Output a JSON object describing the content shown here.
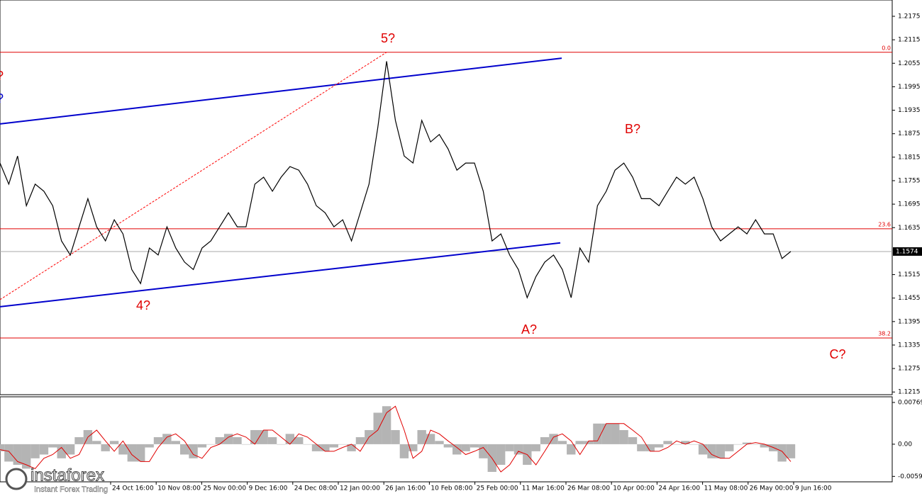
{
  "chart_data": [
    {
      "type": "line",
      "color": "#000000",
      "values": [
        1.18,
        1.1746,
        1.1818,
        1.1691,
        1.1746,
        1.1728,
        1.1691,
        1.1601,
        1.1565,
        1.1637,
        1.1709,
        1.1637,
        1.1601,
        1.1655,
        1.1619,
        1.1528,
        1.1492,
        1.1583,
        1.1565,
        1.1637,
        1.1583,
        1.1547,
        1.1528,
        1.1583,
        1.1601,
        1.1637,
        1.1673,
        1.1637,
        1.1637,
        1.1746,
        1.1764,
        1.1728,
        1.1764,
        1.1791,
        1.1782,
        1.1746,
        1.1691,
        1.1673,
        1.1637,
        1.1655,
        1.1601,
        1.1673,
        1.1746,
        1.1891,
        1.206,
        1.1909,
        1.1818,
        1.18,
        1.1909,
        1.1854,
        1.1873,
        1.1836,
        1.1782,
        1.18,
        1.18,
        1.1728,
        1.1601,
        1.1619,
        1.1565,
        1.1528,
        1.1456,
        1.151,
        1.1547,
        1.1565,
        1.1528,
        1.1456,
        1.1583,
        1.1547,
        1.1691,
        1.1728,
        1.1782,
        1.18,
        1.1764,
        1.1709,
        1.1709,
        1.1691,
        1.1728,
        1.1764,
        1.1746,
        1.1764,
        1.1709,
        1.1637,
        1.1601,
        1.1619,
        1.1637,
        1.1619,
        1.1655,
        1.1619,
        1.1619,
        1.1556,
        1.1574
      ],
      "ylim": [
        1.121,
        1.2213
      ],
      "yticks": [
        1.2175,
        1.2115,
        1.2055,
        1.1995,
        1.1935,
        1.1875,
        1.1815,
        1.1755,
        1.1695,
        1.1635,
        1.1515,
        1.1455,
        1.1395,
        1.1335,
        1.1275,
        1.1215
      ],
      "current_price": 1.1574,
      "levels": [
        {
          "value": 1.2083,
          "label": "0.0",
          "color": "#e00000"
        },
        {
          "value": 1.1632,
          "label": "23.6",
          "color": "#e00000"
        },
        {
          "value": 1.1353,
          "label": "38.2",
          "color": "#e00000"
        }
      ],
      "trendlines": [
        {
          "color": "#0000cc",
          "values": [
            1.19,
            1.2068
          ]
        },
        {
          "color": "#0000cc",
          "values": [
            1.1433,
            1.1596
          ]
        },
        {
          "color": "#ff0000",
          "dashed": true,
          "values": [
            1.1451,
            1.2083
          ]
        }
      ],
      "annotations": [
        {
          "text": "5?",
          "color": "#e00000"
        },
        {
          "text": "4?",
          "color": "#e00000"
        },
        {
          "text": "A?",
          "color": "#e00000"
        },
        {
          "text": "B?",
          "color": "#e00000"
        },
        {
          "text": "C?",
          "color": "#e00000"
        },
        {
          "text": "?",
          "color": "#e00000"
        },
        {
          "text": "?",
          "color": "#0000cc"
        }
      ],
      "x_labels": [
        "24 Oct 16:00",
        "10 Nov 08:00",
        "25 Nov 00:00",
        "9 Dec 16:00",
        "24 Dec 08:00",
        "12 Jan 00:00",
        "26 Jan 16:00",
        "10 Feb 08:00",
        "25 Feb 00:00",
        "11 Mar 16:00",
        "26 Mar 08:00",
        "10 Apr 00:00",
        "24 Apr 16:00",
        "11 May 08:00",
        "26 May 00:00",
        "9 Jun 16:00"
      ]
    },
    {
      "type": "bar",
      "color": "#b4b4b4",
      "values": [
        -0.0013,
        -0.0032,
        -0.0038,
        -0.0045,
        -0.0026,
        -0.0019,
        -0.0006,
        -0.0026,
        -0.0019,
        0.0013,
        0.0026,
        0.0006,
        -0.0013,
        0.0006,
        -0.0019,
        -0.0032,
        -0.0032,
        -0.0006,
        0.0013,
        0.0019,
        0.0006,
        -0.0019,
        -0.0026,
        -0.0006,
        0,
        0.0013,
        0.0019,
        0.0013,
        0,
        0.0026,
        0.0026,
        0.0013,
        0,
        0.0019,
        0.0013,
        0,
        -0.0013,
        -0.0013,
        -0.0006,
        0,
        -0.0013,
        0.0013,
        0.0026,
        0.0058,
        0.007,
        0.0026,
        -0.0026,
        -0.0013,
        0.0026,
        0.0019,
        0.0006,
        -0.0006,
        -0.0019,
        -0.0013,
        -0.0006,
        -0.0026,
        -0.0051,
        -0.0038,
        -0.0013,
        -0.0019,
        -0.0038,
        -0.0013,
        0.0013,
        0.0019,
        0.0006,
        -0.0019,
        0.0006,
        0.0006,
        0.0038,
        0.0038,
        0.0038,
        0.0026,
        0.0013,
        -0.0013,
        -0.0013,
        -0.0006,
        0.0006,
        0,
        0.0006,
        0,
        -0.0019,
        -0.0026,
        -0.0026,
        -0.0013,
        0,
        0.0003,
        0,
        -0.0006,
        -0.0013,
        -0.0032,
        -0.0026
      ],
      "signal": {
        "color": "#e00000",
        "values": [
          -0.001,
          -0.0013,
          -0.0032,
          -0.0038,
          -0.0045,
          -0.0026,
          -0.0019,
          -0.0006,
          -0.0026,
          -0.0019,
          0.0013,
          0.0026,
          0.0006,
          -0.0013,
          0.0006,
          -0.0019,
          -0.0032,
          -0.0032,
          -0.0006,
          0.0013,
          0.0019,
          0.0006,
          -0.0019,
          -0.0026,
          -0.0006,
          0,
          0.0013,
          0.0019,
          0.0013,
          0,
          0.0026,
          0.0026,
          0.0013,
          0,
          0.0019,
          0.0013,
          0,
          -0.0013,
          -0.0013,
          -0.0006,
          0,
          -0.0013,
          0.0013,
          0.0026,
          0.0058,
          0.007,
          0.0026,
          -0.0026,
          -0.0013,
          0.0026,
          0.0019,
          0.0006,
          -0.0006,
          -0.0019,
          -0.0013,
          -0.0006,
          -0.0026,
          -0.0051,
          -0.0038,
          -0.0013,
          -0.0019,
          -0.0038,
          -0.0013,
          0.0013,
          0.0019,
          0.0006,
          -0.0019,
          0.0006,
          0.0006,
          0.0038,
          0.0038,
          0.0038,
          0.0026,
          0.0013,
          -0.0013,
          -0.0013,
          -0.0006,
          0.0006,
          0,
          0.0006,
          0,
          -0.0019,
          -0.0026,
          -0.0026,
          -0.0013,
          0,
          0.0003,
          0,
          -0.0006,
          -0.0013,
          -0.0032
        ]
      },
      "ylim": [
        -0.0068,
        0.0086
      ],
      "yticks": [
        0.00769,
        {
          "value": 0,
          "label": "0.00"
        },
        -0.00593
      ]
    }
  ],
  "branding": {
    "name": "instaforex",
    "tagline": "Instant Forex Trading"
  }
}
